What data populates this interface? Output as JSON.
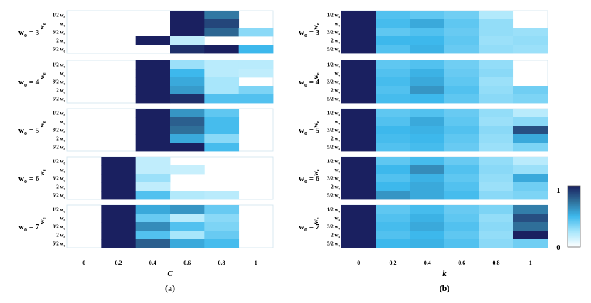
{
  "chart_data": [
    {
      "type": "heatmap",
      "id": "a",
      "caption": "(a)",
      "xlabel": "C",
      "ylabel": "w_e",
      "x_ticks": [
        "0",
        "0.2",
        "0.4",
        "0.6",
        "0.8",
        "1"
      ],
      "columns": [
        0,
        0.2,
        0.4,
        0.6,
        0.8,
        1
      ],
      "row_labels": [
        {
          "main": "1/2 w",
          "sub": "o"
        },
        {
          "main": "w",
          "sub": "o"
        },
        {
          "main": "3/2 w",
          "sub": "o"
        },
        {
          "main": "2 w",
          "sub": "o"
        },
        {
          "main": "5/2 w",
          "sub": "o"
        }
      ],
      "panels": [
        {
          "label_main": "w",
          "label_sub": "o",
          "label_rest": " = 3",
          "values": [
            [
              null,
              null,
              null,
              1.0,
              0.72,
              null
            ],
            [
              null,
              null,
              null,
              1.0,
              0.88,
              null
            ],
            [
              null,
              null,
              null,
              1.0,
              0.78,
              0.32
            ],
            [
              null,
              null,
              1.0,
              0.18,
              null,
              null
            ],
            [
              null,
              null,
              null,
              0.95,
              1.0,
              0.5
            ]
          ]
        },
        {
          "label_main": "w",
          "label_sub": "o",
          "label_rest": " = 4",
          "values": [
            [
              null,
              null,
              1.0,
              0.28,
              0.2,
              0.2
            ],
            [
              null,
              null,
              1.0,
              0.5,
              0.2,
              0.18
            ],
            [
              null,
              null,
              1.0,
              0.55,
              0.25,
              null
            ],
            [
              null,
              null,
              1.0,
              0.6,
              0.25,
              0.35
            ],
            [
              null,
              null,
              1.0,
              0.95,
              0.45,
              0.45
            ]
          ]
        },
        {
          "label_main": "w",
          "label_sub": "o",
          "label_rest": " = 5",
          "values": [
            [
              null,
              null,
              1.0,
              0.62,
              0.42,
              null
            ],
            [
              null,
              null,
              1.0,
              0.8,
              0.48,
              null
            ],
            [
              null,
              null,
              1.0,
              0.75,
              0.48,
              null
            ],
            [
              null,
              null,
              1.0,
              0.55,
              0.32,
              null
            ],
            [
              null,
              null,
              1.0,
              1.0,
              0.48,
              null
            ]
          ]
        },
        {
          "label_main": "w",
          "label_sub": "o",
          "label_rest": " = 6",
          "values": [
            [
              null,
              1.0,
              0.18,
              null,
              null,
              null
            ],
            [
              null,
              1.0,
              0.18,
              0.16,
              null,
              null
            ],
            [
              null,
              1.0,
              0.28,
              null,
              null,
              null
            ],
            [
              null,
              1.0,
              0.18,
              null,
              null,
              null
            ],
            [
              null,
              1.0,
              0.45,
              0.22,
              0.2,
              null
            ]
          ]
        },
        {
          "label_main": "w",
          "label_sub": "o",
          "label_rest": " = 7",
          "values": [
            [
              null,
              1.0,
              0.55,
              0.62,
              0.4,
              null
            ],
            [
              null,
              1.0,
              0.4,
              0.2,
              0.32,
              null
            ],
            [
              null,
              1.0,
              0.65,
              0.45,
              0.35,
              null
            ],
            [
              null,
              1.0,
              0.45,
              0.25,
              0.4,
              null
            ],
            [
              null,
              1.0,
              0.8,
              0.55,
              0.48,
              null
            ]
          ]
        }
      ]
    },
    {
      "type": "heatmap",
      "id": "b",
      "caption": "(b)",
      "xlabel": "k",
      "ylabel": "w_e",
      "x_ticks": [
        "0",
        "0.2",
        "0.4",
        "0.6",
        "0.8",
        "1"
      ],
      "columns": [
        0,
        0.2,
        0.4,
        0.6,
        0.8,
        1
      ],
      "row_labels": [
        {
          "main": "1/2 w",
          "sub": "o"
        },
        {
          "main": "w",
          "sub": "o"
        },
        {
          "main": "3/2 w",
          "sub": "o"
        },
        {
          "main": "2 w",
          "sub": "o"
        },
        {
          "main": "5/2 w",
          "sub": "o"
        }
      ],
      "panels": [
        {
          "label_main": "w",
          "label_sub": "o",
          "label_rest": " = 3",
          "values": [
            [
              1.0,
              0.45,
              0.42,
              0.38,
              0.22,
              null
            ],
            [
              1.0,
              0.48,
              0.55,
              0.42,
              0.3,
              null
            ],
            [
              1.0,
              0.42,
              0.45,
              0.4,
              0.3,
              0.28
            ],
            [
              1.0,
              0.5,
              0.5,
              0.42,
              0.28,
              0.3
            ],
            [
              1.0,
              0.45,
              0.52,
              0.4,
              0.3,
              0.28
            ]
          ]
        },
        {
          "label_main": "w",
          "label_sub": "o",
          "label_rest": " = 4",
          "values": [
            [
              1.0,
              0.42,
              0.45,
              0.38,
              0.3,
              null
            ],
            [
              1.0,
              0.45,
              0.52,
              0.4,
              0.32,
              null
            ],
            [
              1.0,
              0.48,
              0.55,
              0.42,
              0.28,
              null
            ],
            [
              1.0,
              0.45,
              0.62,
              0.45,
              0.3,
              0.38
            ],
            [
              1.0,
              0.48,
              0.5,
              0.42,
              0.32,
              0.35
            ]
          ]
        },
        {
          "label_main": "w",
          "label_sub": "o",
          "label_rest": " = 5",
          "values": [
            [
              1.0,
              0.42,
              0.45,
              0.4,
              0.3,
              0.2
            ],
            [
              1.0,
              0.45,
              0.55,
              0.42,
              0.28,
              0.32
            ],
            [
              1.0,
              0.5,
              0.52,
              0.45,
              0.32,
              0.85
            ],
            [
              1.0,
              0.48,
              0.5,
              0.42,
              0.3,
              0.55
            ],
            [
              1.0,
              0.45,
              0.48,
              0.4,
              0.28,
              0.35
            ]
          ]
        },
        {
          "label_main": "w",
          "label_sub": "o",
          "label_rest": " = 6",
          "values": [
            [
              1.0,
              0.42,
              0.48,
              0.4,
              0.3,
              0.2
            ],
            [
              1.0,
              0.5,
              0.65,
              0.45,
              0.32,
              0.28
            ],
            [
              1.0,
              0.45,
              0.52,
              0.42,
              0.3,
              0.55
            ],
            [
              1.0,
              0.5,
              0.55,
              0.45,
              0.28,
              0.38
            ],
            [
              1.0,
              0.62,
              0.55,
              0.48,
              0.32,
              0.35
            ]
          ]
        },
        {
          "label_main": "w",
          "label_sub": "o",
          "label_rest": " = 7",
          "values": [
            [
              1.0,
              0.42,
              0.48,
              0.4,
              0.35,
              0.7
            ],
            [
              1.0,
              0.45,
              0.52,
              0.42,
              0.3,
              0.85
            ],
            [
              1.0,
              0.48,
              0.55,
              0.45,
              0.32,
              0.75
            ],
            [
              1.0,
              0.45,
              0.5,
              0.42,
              0.3,
              1.0
            ],
            [
              1.0,
              0.5,
              0.52,
              0.45,
              0.32,
              0.38
            ]
          ]
        }
      ]
    }
  ],
  "colorbar": {
    "min_label": "0",
    "max_label": "1",
    "stops": [
      {
        "value": 0.0,
        "color": "#ffffff"
      },
      {
        "value": 0.25,
        "color": "#a8e6fb"
      },
      {
        "value": 0.5,
        "color": "#3db8ec"
      },
      {
        "value": 0.75,
        "color": "#2f6f99"
      },
      {
        "value": 1.0,
        "color": "#1a2060"
      }
    ]
  }
}
